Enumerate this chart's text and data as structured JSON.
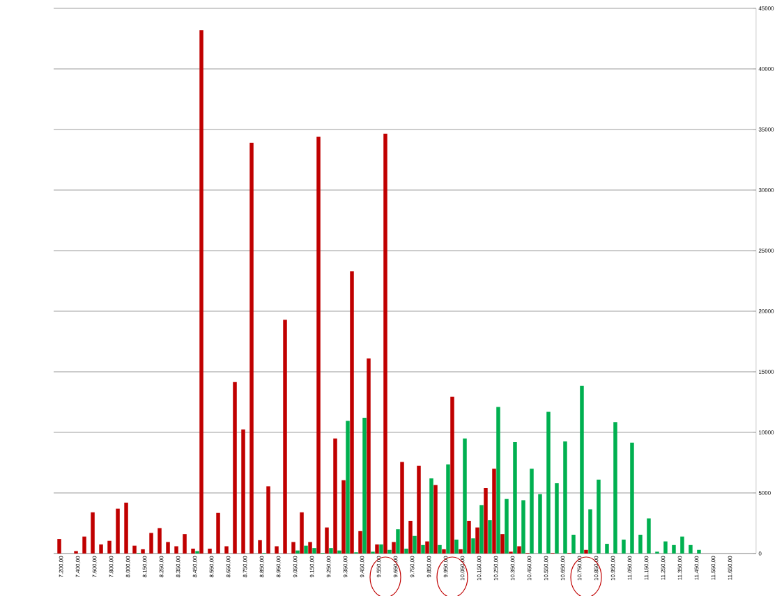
{
  "chart_data": {
    "type": "bar",
    "categories": [
      "7.200,00",
      null,
      "7.400,00",
      null,
      "7.600,00",
      null,
      "7.800,00",
      null,
      "8.000,00",
      null,
      "8.150,00",
      null,
      "8.250,00",
      null,
      "8.350,00",
      null,
      "8.450,00",
      null,
      "8.550,00",
      null,
      "8.650,00",
      null,
      "8.750,00",
      null,
      "8.850,00",
      null,
      "8.950,00",
      null,
      "9.050,00",
      null,
      "9.150,00",
      null,
      "9.250,00",
      null,
      "9.350,00",
      null,
      "9.450,00",
      null,
      "9.550,00",
      null,
      "9.650,00",
      null,
      "9.750,00",
      null,
      "9.850,00",
      null,
      "9.950,00",
      null,
      "10.050,00",
      null,
      "10.150,00",
      null,
      "10.250,00",
      null,
      "10.350,00",
      null,
      "10.450,00",
      null,
      "10.550,00",
      null,
      "10.650,00",
      null,
      "10.750,00",
      null,
      "10.850,00",
      null,
      "10.950,00",
      null,
      "11.050,00",
      null,
      "11.150,00",
      null,
      "11.250,00",
      null,
      "11.350,00",
      null,
      "11.450,00",
      null,
      "11.550,00",
      null,
      "11.650,00",
      null,
      null,
      null
    ],
    "series": [
      {
        "color": "#c00000",
        "values": [
          1200,
          0,
          200,
          1400,
          3400,
          750,
          1050,
          3700,
          4200,
          650,
          350,
          1700,
          2100,
          950,
          600,
          1600,
          400,
          43200,
          400,
          3350,
          600,
          14150,
          10250,
          33900,
          1100,
          5550,
          600,
          19300,
          950,
          3400,
          950,
          34400,
          2150,
          9500,
          6050,
          23300,
          1850,
          16100,
          750,
          34650,
          950,
          7550,
          2700,
          7250,
          1000,
          5650,
          350,
          12950,
          350,
          2700,
          2150,
          5400,
          7000,
          1600,
          150,
          600,
          50,
          0,
          0,
          50,
          0,
          50,
          0,
          300,
          0,
          0,
          0,
          0,
          0,
          0,
          0,
          0,
          0,
          0,
          0,
          0,
          0,
          0,
          0,
          0,
          0,
          0,
          0,
          0
        ]
      },
      {
        "color": "#00b050",
        "values": [
          0,
          0,
          0,
          0,
          0,
          0,
          0,
          0,
          0,
          50,
          0,
          0,
          0,
          0,
          0,
          0,
          200,
          0,
          0,
          0,
          0,
          0,
          0,
          0,
          50,
          0,
          0,
          0,
          250,
          650,
          450,
          50,
          450,
          250,
          10950,
          100,
          11200,
          150,
          750,
          300,
          2000,
          400,
          1450,
          700,
          6200,
          700,
          7350,
          1150,
          9500,
          1250,
          4000,
          2750,
          12100,
          4500,
          9200,
          4400,
          7000,
          4900,
          11700,
          5800,
          9250,
          1550,
          13850,
          3650,
          6100,
          800,
          10850,
          1150,
          9150,
          1550,
          2900,
          150,
          1000,
          700,
          1400,
          700,
          300,
          0,
          0,
          0,
          0,
          0,
          0,
          0
        ]
      }
    ],
    "ylim": [
      0,
      45000
    ],
    "yticks": [
      0,
      5000,
      10000,
      15000,
      20000,
      25000,
      30000,
      35000,
      40000,
      45000
    ],
    "grid": "y"
  }
}
